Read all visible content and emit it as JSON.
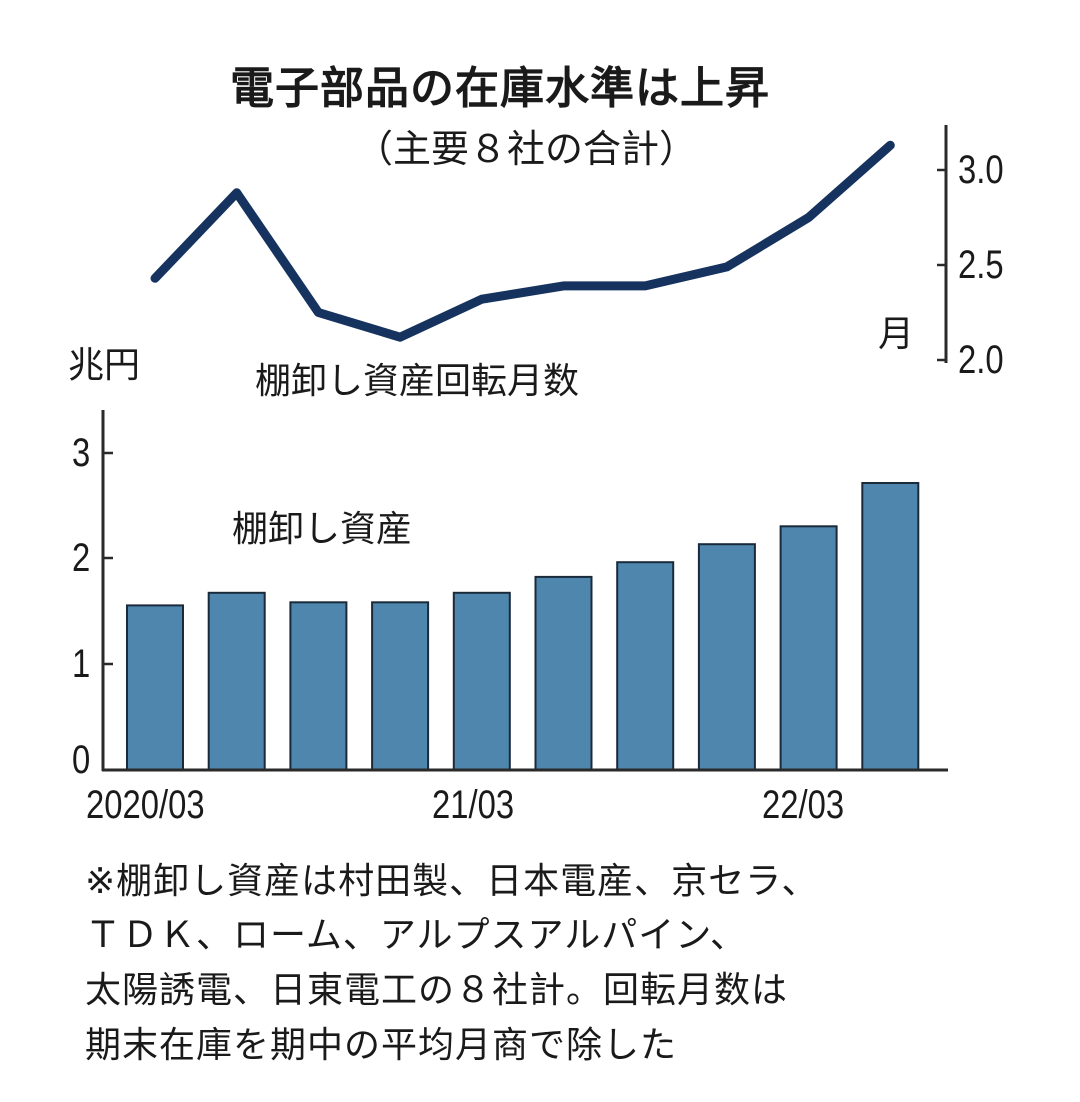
{
  "header": {
    "title": "電子部品の在庫水準は上昇",
    "subtitle": "（主要８社の合計）"
  },
  "labels": {
    "left_unit": "兆円",
    "right_unit": "月",
    "line_label": "棚卸し資産回転月数",
    "bar_label": "棚卸し資産"
  },
  "axes": {
    "right_ticks": [
      "3.0",
      "2.5",
      "2.0"
    ],
    "left_ticks": [
      "3",
      "2",
      "1",
      "0"
    ],
    "x_ticks": [
      "2020/03",
      "21/03",
      "22/03"
    ]
  },
  "note": {
    "lines": [
      "※棚卸し資産は村田製、日本電産、京セラ、",
      "ＴＤＫ、ローム、アルプスアルパイン、",
      "太陽誘電、日東電工の８社計。回転月数は",
      "期末在庫を期中の平均月商で除した"
    ]
  },
  "colors": {
    "bar_fill": "#4e86ad",
    "bar_stroke": "#1a2a3a",
    "line": "#15335e",
    "axis": "#2a2a2a"
  },
  "chart_data": [
    {
      "type": "line",
      "title": "電子部品の在庫水準は上昇",
      "subtitle": "（主要８社の合計）",
      "series": [
        {
          "name": "棚卸し資産回転月数",
          "values": [
            2.43,
            2.88,
            2.25,
            2.12,
            2.32,
            2.39,
            2.39,
            2.49,
            2.75,
            3.13
          ]
        }
      ],
      "x": [
        "2020/03",
        "2020/06",
        "2020/09",
        "2020/12",
        "2021/03",
        "2021/06",
        "2021/09",
        "2021/12",
        "2022/03",
        "2022/06"
      ],
      "ylabel": "月",
      "ylim": [
        2.0,
        3.2
      ],
      "yticks": [
        2.0,
        2.5,
        3.0
      ],
      "axis_side": "right",
      "grid": false
    },
    {
      "type": "bar",
      "series": [
        {
          "name": "棚卸し資産",
          "values": [
            1.56,
            1.68,
            1.59,
            1.59,
            1.68,
            1.83,
            1.97,
            2.14,
            2.31,
            2.72
          ]
        }
      ],
      "categories": [
        "2020/03",
        "2020/06",
        "2020/09",
        "2020/12",
        "2021/03",
        "2021/06",
        "2021/09",
        "2021/12",
        "2022/03",
        "2022/06"
      ],
      "xtick_labels": [
        "2020/03",
        "21/03",
        "22/03"
      ],
      "ylabel": "兆円",
      "ylim": [
        0,
        3.3
      ],
      "yticks": [
        0,
        1,
        2,
        3
      ],
      "grid": false
    }
  ]
}
